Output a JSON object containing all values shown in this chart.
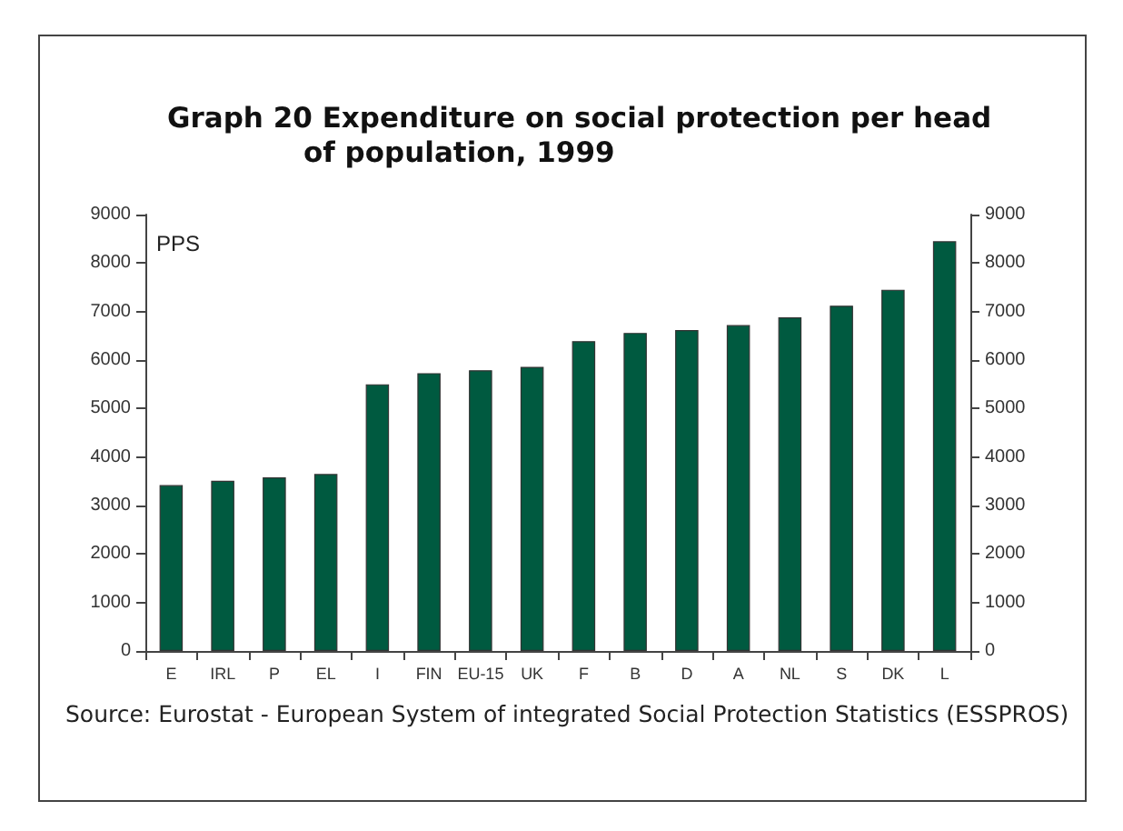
{
  "chart_data": {
    "type": "bar",
    "title": "Graph 20  Expenditure on social protection per head of population, 1999",
    "ylabel": "PPS",
    "categories": [
      "E",
      "IRL",
      "P",
      "EL",
      "I",
      "FIN",
      "EU-15",
      "UK",
      "F",
      "B",
      "D",
      "A",
      "NL",
      "S",
      "DK",
      "L"
    ],
    "values": [
      3420,
      3510,
      3580,
      3650,
      5500,
      5730,
      5790,
      5860,
      6390,
      6560,
      6620,
      6720,
      6880,
      7120,
      7450,
      8450
    ],
    "color": "#005a40",
    "ylim": [
      0,
      9000
    ],
    "yticks": [
      0,
      1000,
      2000,
      3000,
      4000,
      5000,
      6000,
      7000,
      8000,
      9000
    ],
    "y2lim": [
      0,
      9000
    ],
    "y2ticks": [
      0,
      1000,
      2000,
      3000,
      4000,
      5000,
      6000,
      7000,
      8000,
      9000
    ],
    "grid": false,
    "annotations": [
      "Source:  Eurostat - European System of integrated Social Protection Statistics (ESSPROS)"
    ]
  }
}
